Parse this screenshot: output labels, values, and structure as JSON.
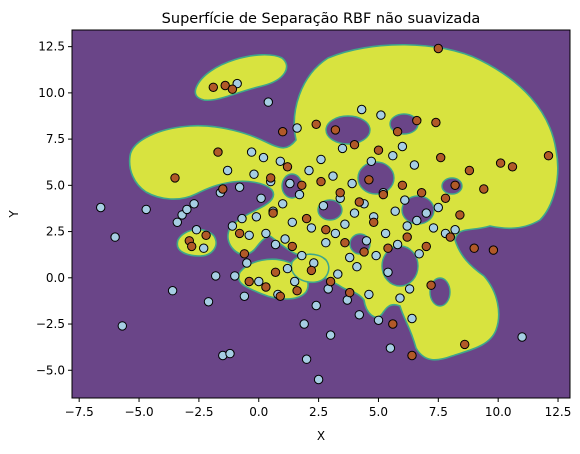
{
  "chart_data": {
    "type": "scatter",
    "title": "Superfície de Separação RBF não suavizada",
    "xlabel": "X",
    "ylabel": "Y",
    "xlim": [
      -7.8,
      13.0
    ],
    "ylim": [
      -6.5,
      13.4
    ],
    "x_ticks": [
      -7.5,
      -5.0,
      -2.5,
      0.0,
      2.5,
      5.0,
      7.5,
      10.0,
      12.5
    ],
    "x_tick_labels": [
      "−7.5",
      "−5.0",
      "−2.5",
      "0.0",
      "2.5",
      "5.0",
      "7.5",
      "10.0",
      "12.5"
    ],
    "y_ticks": [
      -5.0,
      -2.5,
      0.0,
      2.5,
      5.0,
      7.5,
      10.0,
      12.5
    ],
    "y_tick_labels": [
      "−5.0",
      "−2.5",
      "0.0",
      "2.5",
      "5.0",
      "7.5",
      "10.0",
      "12.5"
    ],
    "grid": false,
    "colors": {
      "background_region": "#6a4588",
      "decision_region": "#d8e33f",
      "region_edge": "#3fa78a",
      "class_0_point": "#a6cee3",
      "class_1_point": "#b15928",
      "point_edge": "#000000"
    },
    "series": [
      {
        "class": 0,
        "values": [
          [
            -6.6,
            3.8
          ],
          [
            -6.0,
            2.2
          ],
          [
            -5.7,
            -2.6
          ],
          [
            -4.7,
            3.7
          ],
          [
            -3.6,
            -0.7
          ],
          [
            -3.4,
            3.0
          ],
          [
            -3.2,
            3.4
          ],
          [
            -3.0,
            3.7
          ],
          [
            -2.7,
            4.0
          ],
          [
            -2.6,
            2.6
          ],
          [
            -2.3,
            1.6
          ],
          [
            -2.1,
            -1.3
          ],
          [
            -1.8,
            0.1
          ],
          [
            -1.6,
            4.6
          ],
          [
            -1.5,
            -4.2
          ],
          [
            -1.3,
            5.8
          ],
          [
            -1.2,
            -4.1
          ],
          [
            -1.1,
            2.8
          ],
          [
            -1.0,
            0.1
          ],
          [
            -0.9,
            10.5
          ],
          [
            -0.8,
            4.9
          ],
          [
            -0.7,
            3.2
          ],
          [
            -0.6,
            -1.0
          ],
          [
            -0.5,
            0.8
          ],
          [
            -0.4,
            2.3
          ],
          [
            -0.3,
            6.8
          ],
          [
            -0.2,
            5.6
          ],
          [
            -0.1,
            3.3
          ],
          [
            0.0,
            -0.2
          ],
          [
            0.1,
            4.3
          ],
          [
            0.2,
            6.5
          ],
          [
            0.3,
            2.4
          ],
          [
            0.4,
            9.5
          ],
          [
            0.5,
            5.2
          ],
          [
            0.6,
            3.6
          ],
          [
            0.7,
            1.8
          ],
          [
            0.8,
            -0.9
          ],
          [
            0.9,
            6.3
          ],
          [
            1.0,
            4.0
          ],
          [
            1.1,
            2.1
          ],
          [
            1.2,
            0.5
          ],
          [
            1.3,
            5.1
          ],
          [
            1.4,
            3.0
          ],
          [
            1.5,
            -0.2
          ],
          [
            1.6,
            8.1
          ],
          [
            1.7,
            4.5
          ],
          [
            1.8,
            1.2
          ],
          [
            1.9,
            -2.5
          ],
          [
            2.0,
            -4.4
          ],
          [
            2.1,
            5.8
          ],
          [
            2.2,
            2.7
          ],
          [
            2.3,
            0.8
          ],
          [
            2.4,
            -1.5
          ],
          [
            2.5,
            -5.5
          ],
          [
            2.6,
            6.4
          ],
          [
            2.7,
            3.9
          ],
          [
            2.8,
            1.9
          ],
          [
            2.9,
            -0.6
          ],
          [
            3.0,
            -3.1
          ],
          [
            3.1,
            5.5
          ],
          [
            3.2,
            2.4
          ],
          [
            3.3,
            0.2
          ],
          [
            3.4,
            4.3
          ],
          [
            3.5,
            7.0
          ],
          [
            3.6,
            2.9
          ],
          [
            3.7,
            -1.2
          ],
          [
            3.8,
            1.1
          ],
          [
            3.9,
            5.1
          ],
          [
            4.0,
            3.5
          ],
          [
            4.1,
            0.6
          ],
          [
            4.2,
            -2.0
          ],
          [
            4.3,
            9.1
          ],
          [
            4.4,
            4.0
          ],
          [
            4.5,
            2.0
          ],
          [
            4.6,
            -0.9
          ],
          [
            4.7,
            6.3
          ],
          [
            4.8,
            3.3
          ],
          [
            4.9,
            1.2
          ],
          [
            5.0,
            -2.3
          ],
          [
            5.1,
            8.8
          ],
          [
            5.2,
            4.6
          ],
          [
            5.3,
            2.4
          ],
          [
            5.4,
            0.3
          ],
          [
            5.5,
            -3.8
          ],
          [
            5.6,
            6.6
          ],
          [
            5.7,
            3.6
          ],
          [
            5.8,
            1.8
          ],
          [
            5.9,
            -1.1
          ],
          [
            6.0,
            7.1
          ],
          [
            6.1,
            4.2
          ],
          [
            6.2,
            2.8
          ],
          [
            6.3,
            -0.6
          ],
          [
            6.4,
            -2.2
          ],
          [
            6.5,
            6.1
          ],
          [
            6.6,
            3.1
          ],
          [
            6.7,
            1.3
          ],
          [
            7.0,
            3.5
          ],
          [
            7.3,
            2.7
          ],
          [
            7.5,
            3.8
          ],
          [
            7.8,
            2.4
          ],
          [
            8.2,
            2.6
          ],
          [
            11.0,
            -3.2
          ]
        ]
      },
      {
        "class": 1,
        "values": [
          [
            -3.5,
            5.4
          ],
          [
            -2.9,
            2.0
          ],
          [
            -2.8,
            1.7
          ],
          [
            -2.2,
            2.3
          ],
          [
            -1.9,
            10.3
          ],
          [
            -1.7,
            6.8
          ],
          [
            -1.5,
            4.8
          ],
          [
            -1.4,
            10.4
          ],
          [
            -1.1,
            10.2
          ],
          [
            -0.8,
            2.4
          ],
          [
            -0.6,
            1.3
          ],
          [
            -0.4,
            -0.2
          ],
          [
            0.3,
            -0.5
          ],
          [
            0.5,
            5.4
          ],
          [
            0.6,
            3.5
          ],
          [
            0.7,
            0.3
          ],
          [
            0.9,
            -1.0
          ],
          [
            1.0,
            7.9
          ],
          [
            1.2,
            6.0
          ],
          [
            1.4,
            1.7
          ],
          [
            1.6,
            -0.7
          ],
          [
            1.8,
            5.0
          ],
          [
            2.0,
            3.2
          ],
          [
            2.2,
            0.4
          ],
          [
            2.4,
            8.3
          ],
          [
            2.6,
            5.2
          ],
          [
            2.8,
            2.6
          ],
          [
            3.0,
            -0.2
          ],
          [
            3.2,
            8.0
          ],
          [
            3.4,
            4.6
          ],
          [
            3.6,
            1.9
          ],
          [
            3.8,
            -0.8
          ],
          [
            4.0,
            7.2
          ],
          [
            4.2,
            4.1
          ],
          [
            4.4,
            1.4
          ],
          [
            4.6,
            5.3
          ],
          [
            4.8,
            3.0
          ],
          [
            5.0,
            6.9
          ],
          [
            5.2,
            4.5
          ],
          [
            5.4,
            1.6
          ],
          [
            5.6,
            -2.5
          ],
          [
            5.8,
            7.9
          ],
          [
            6.0,
            5.0
          ],
          [
            6.2,
            2.2
          ],
          [
            6.4,
            -4.2
          ],
          [
            6.6,
            8.5
          ],
          [
            6.8,
            4.6
          ],
          [
            7.0,
            1.7
          ],
          [
            7.2,
            -0.4
          ],
          [
            7.4,
            8.4
          ],
          [
            7.6,
            6.5
          ],
          [
            7.8,
            4.3
          ],
          [
            8.0,
            2.2
          ],
          [
            8.2,
            5.0
          ],
          [
            8.4,
            3.4
          ],
          [
            8.6,
            -3.6
          ],
          [
            8.8,
            5.8
          ],
          [
            9.0,
            1.6
          ],
          [
            9.4,
            4.8
          ],
          [
            9.8,
            1.5
          ],
          [
            10.1,
            6.2
          ],
          [
            10.6,
            6.0
          ],
          [
            12.1,
            6.6
          ],
          [
            7.5,
            12.4
          ]
        ]
      }
    ]
  }
}
